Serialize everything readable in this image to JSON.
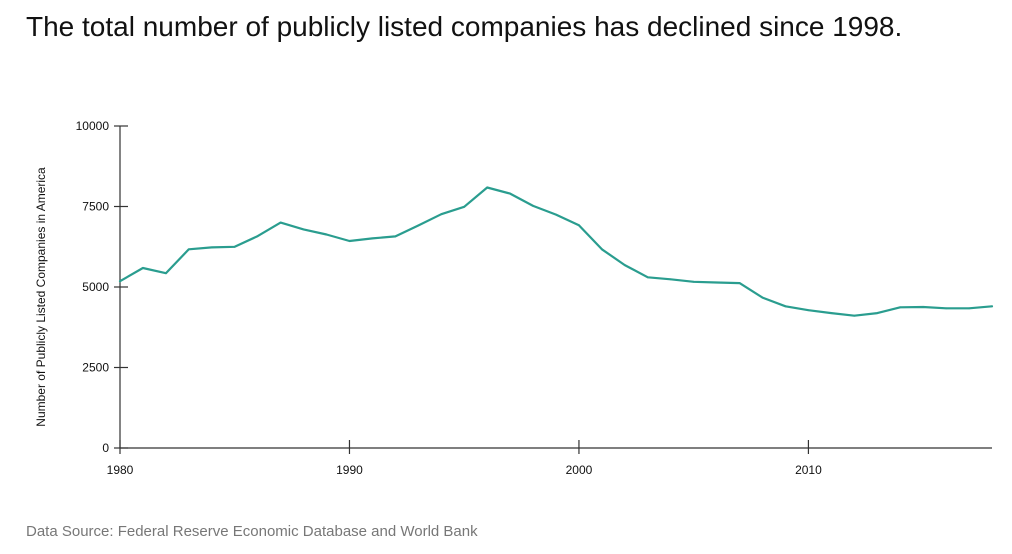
{
  "page": {
    "title": "The total number of publicly listed companies has declined since 1998.",
    "source": "Data Source: Federal Reserve Economic Database and World Bank"
  },
  "colors": {
    "line": "#2a9d8f",
    "axis": "#333333",
    "text": "#111111",
    "source_text": "#777777"
  },
  "chart_data": {
    "type": "line",
    "title": "The total number of publicly listed companies has declined since 1998.",
    "xlabel": "",
    "ylabel": "Number of Publicly Listed Companies in America",
    "xlim": [
      1980,
      2018
    ],
    "ylim": [
      0,
      10000
    ],
    "x_ticks": [
      1980,
      1990,
      2000,
      2010
    ],
    "y_ticks": [
      0,
      2500,
      5000,
      7500,
      10000
    ],
    "grid": false,
    "legend": "none",
    "x": [
      1980,
      1981,
      1982,
      1983,
      1984,
      1985,
      1986,
      1987,
      1988,
      1989,
      1990,
      1991,
      1992,
      1993,
      1994,
      1995,
      1996,
      1997,
      1998,
      1999,
      2000,
      2001,
      2002,
      2003,
      2004,
      2005,
      2006,
      2007,
      2008,
      2009,
      2010,
      2011,
      2012,
      2013,
      2014,
      2015,
      2016,
      2017,
      2018
    ],
    "series": [
      {
        "values": [
          5180,
          5590,
          5430,
          6170,
          6230,
          6250,
          6580,
          7000,
          6790,
          6630,
          6430,
          6510,
          6570,
          6910,
          7260,
          7490,
          8090,
          7900,
          7520,
          7250,
          6920,
          6170,
          5680,
          5300,
          5240,
          5160,
          5140,
          5120,
          4670,
          4400,
          4280,
          4190,
          4110,
          4190,
          4370,
          4380,
          4340,
          4340,
          4400
        ]
      }
    ]
  }
}
